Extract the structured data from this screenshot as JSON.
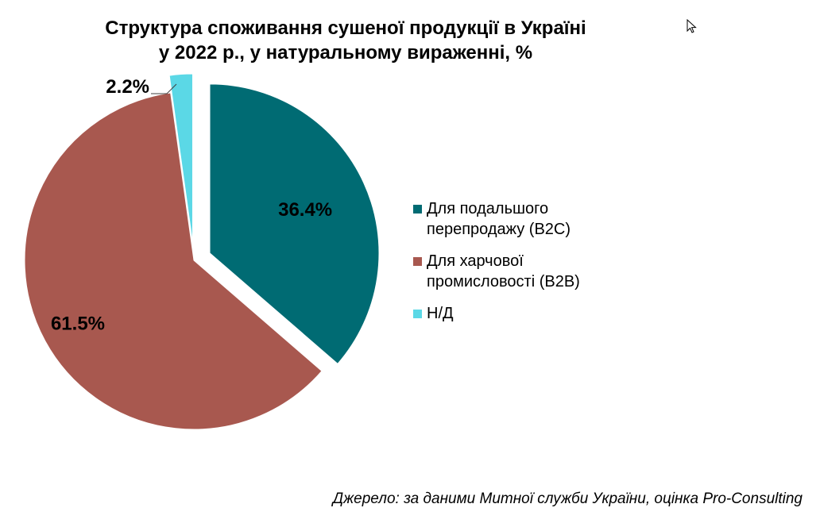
{
  "title_line1": "Структура споживання сушеної продукції в Україні",
  "title_line2": "у 2022 р., у натуральному вираженні, %",
  "source": "Джерело: за даними Митної служби України, оцінка Pro-Consulting",
  "chart_data": {
    "type": "pie",
    "title": "Структура споживання сушеної продукції в Україні у 2022 р., у натуральному вираженні, %",
    "legend_position": "right",
    "slices": [
      {
        "name": "Для подальшого перепродажу (B2C)",
        "value": 36.4,
        "label": "36.4%",
        "color": "#006b73",
        "exploded": true
      },
      {
        "name": "Для харчової промисловості (B2B)",
        "value": 61.5,
        "label": "61.5%",
        "color": "#a8584f",
        "exploded": false
      },
      {
        "name": "Н/Д",
        "value": 2.2,
        "label": "2.2%",
        "color": "#5bd8e6",
        "exploded": true
      }
    ]
  },
  "legend": [
    {
      "label": "Для подальшого\nперепродажу (B2C)",
      "color": "#006b73"
    },
    {
      "label": "Для харчової\nпромисловості (B2B)",
      "color": "#a8584f"
    },
    {
      "label": "Н/Д",
      "color": "#5bd8e6"
    }
  ]
}
